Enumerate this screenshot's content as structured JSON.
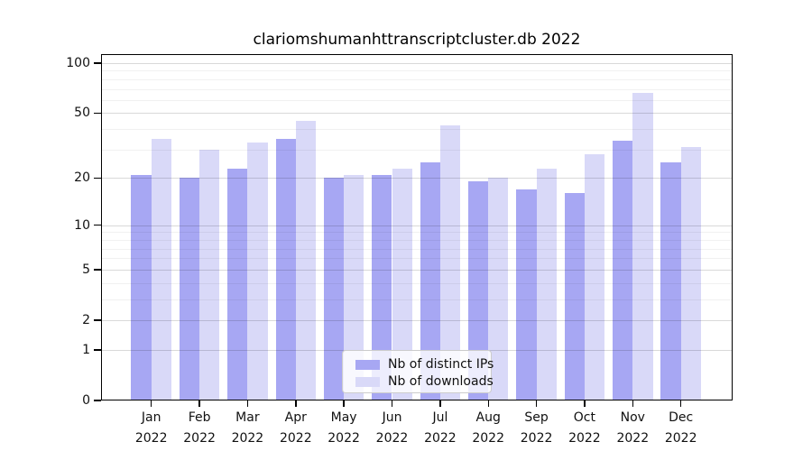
{
  "title": "clariomshumanhttranscriptcluster.db 2022",
  "chart_data": {
    "type": "bar",
    "title": "clariomshumanhttranscriptcluster.db 2022",
    "categories": [
      "Jan",
      "Feb",
      "Mar",
      "Apr",
      "May",
      "Jun",
      "Jul",
      "Aug",
      "Sep",
      "Oct",
      "Nov",
      "Dec"
    ],
    "x_tick_year": "2022",
    "series": [
      {
        "name": "Nb of distinct IPs",
        "color": "#a7a7f3",
        "values": [
          21,
          20,
          23,
          35,
          20,
          21,
          25,
          19,
          17,
          16,
          34,
          25
        ]
      },
      {
        "name": "Nb of downloads",
        "color": "#d9d9f8",
        "values": [
          35,
          30,
          33,
          45,
          21,
          23,
          42,
          20,
          23,
          28,
          66,
          31
        ]
      }
    ],
    "y_axis": {
      "scale": "log1p",
      "major_ticks": [
        0,
        1,
        2,
        5,
        10,
        20,
        50,
        100
      ],
      "minor_ticks": [
        3,
        4,
        6,
        7,
        8,
        9,
        30,
        40,
        60,
        70,
        80,
        90
      ],
      "ylim": [
        0,
        113
      ]
    },
    "legend_location": "lower center",
    "grid": true,
    "colors": {
      "background": "#ffffff",
      "spine": "#000000"
    }
  }
}
